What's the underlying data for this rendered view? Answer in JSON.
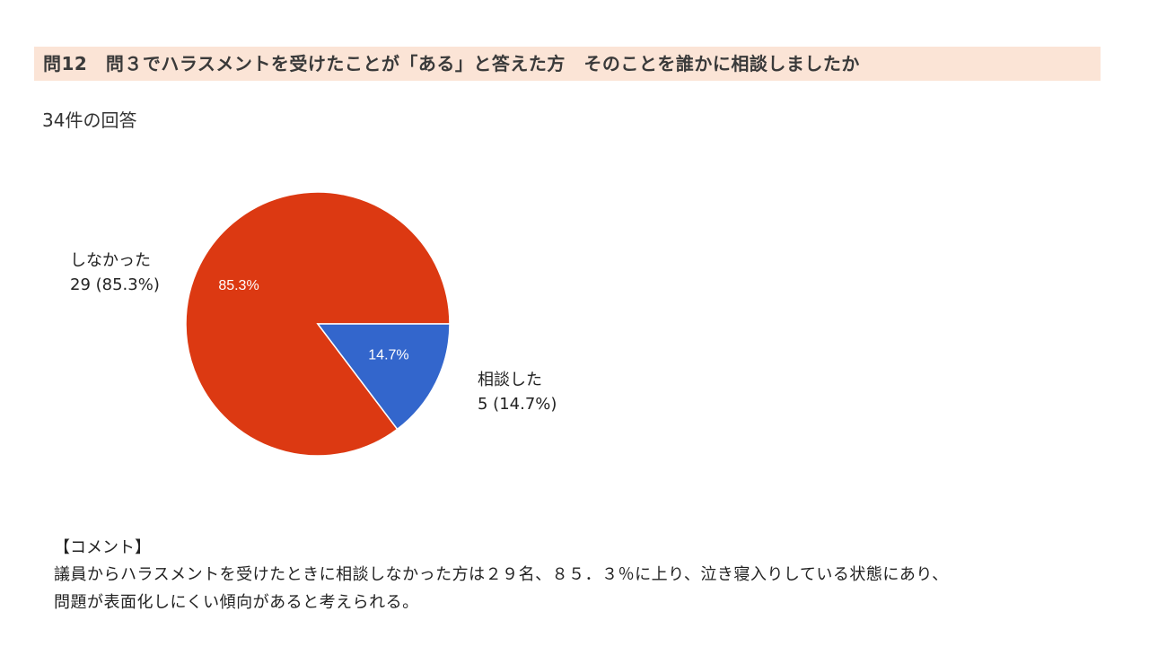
{
  "title": "問12　問３でハラスメントを受けたことが「ある」と答えた方　そのことを誰かに相談しましたか",
  "response_count": "34件の回答",
  "chart_data": {
    "type": "pie",
    "slices": [
      {
        "label": "しなかった",
        "count": 29,
        "percent": 85.3,
        "legend_text": "29 (85.3%)",
        "pct_label": "85.3%",
        "color": "#dc3912"
      },
      {
        "label": "相談した",
        "count": 5,
        "percent": 14.7,
        "legend_text": "5 (14.7%)",
        "pct_label": "14.7%",
        "color": "#3366cc"
      }
    ]
  },
  "comment": {
    "heading": "【コメント】",
    "lines": [
      "議員からハラスメントを受けたときに相談しなかった方は２９名、８５．３％に上り、泣き寝入りしている状態にあり、",
      "問題が表面化しにくい傾向があると考えられる。"
    ]
  }
}
